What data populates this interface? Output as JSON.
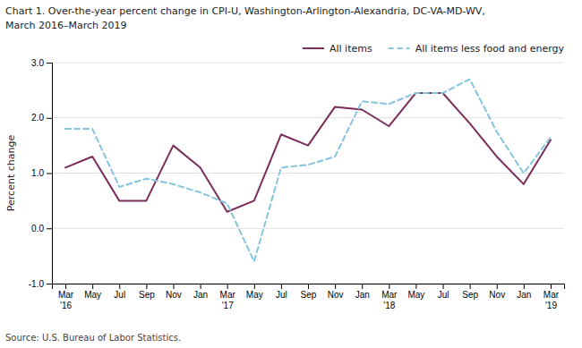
{
  "chart_data": {
    "type": "line",
    "title": "Chart 1. Over-the-year percent change in CPI-U, Washington-Arlington-Alexandria, DC-VA-MD-WV,",
    "subtitle": "March 2016–March 2019",
    "y_label": "Percent change",
    "source": "Source: U.S. Bureau of Labor Statistics.",
    "categories": [
      "Mar\n'16",
      "May",
      "Jul",
      "Sep",
      "Nov",
      "Jan",
      "Mar\n'17",
      "May",
      "Jul",
      "Sep",
      "Nov",
      "Jan",
      "Mar\n'18",
      "May",
      "Jul",
      "Sep",
      "Nov",
      "Jan",
      "Mar\n'19"
    ],
    "series": [
      {
        "name": "All items",
        "color": "#7B2D5A",
        "line_style": "solid",
        "values": [
          1.1,
          1.3,
          0.5,
          0.5,
          1.5,
          1.1,
          0.3,
          0.5,
          1.7,
          1.5,
          2.2,
          2.15,
          1.85,
          2.45,
          2.45,
          1.9,
          1.3,
          0.8,
          1.6
        ]
      },
      {
        "name": "All items less food and energy",
        "color": "#85C4E0",
        "line_style": "dashed",
        "values": [
          1.8,
          1.8,
          0.75,
          0.9,
          0.8,
          0.65,
          0.45,
          -0.6,
          1.1,
          1.15,
          1.3,
          2.3,
          2.25,
          2.45,
          2.45,
          2.7,
          1.75,
          1.0,
          1.65
        ]
      }
    ],
    "ylim": [
      -1.0,
      3.0
    ],
    "yticks": [
      {
        "value": -1.0,
        "label": "-1.0"
      },
      {
        "value": 0.0,
        "label": "0.0"
      },
      {
        "value": 1.0,
        "label": "1.0"
      },
      {
        "value": 2.0,
        "label": "2.0"
      },
      {
        "value": 3.0,
        "label": "3.0"
      }
    ],
    "grid": true,
    "legend": "top"
  }
}
